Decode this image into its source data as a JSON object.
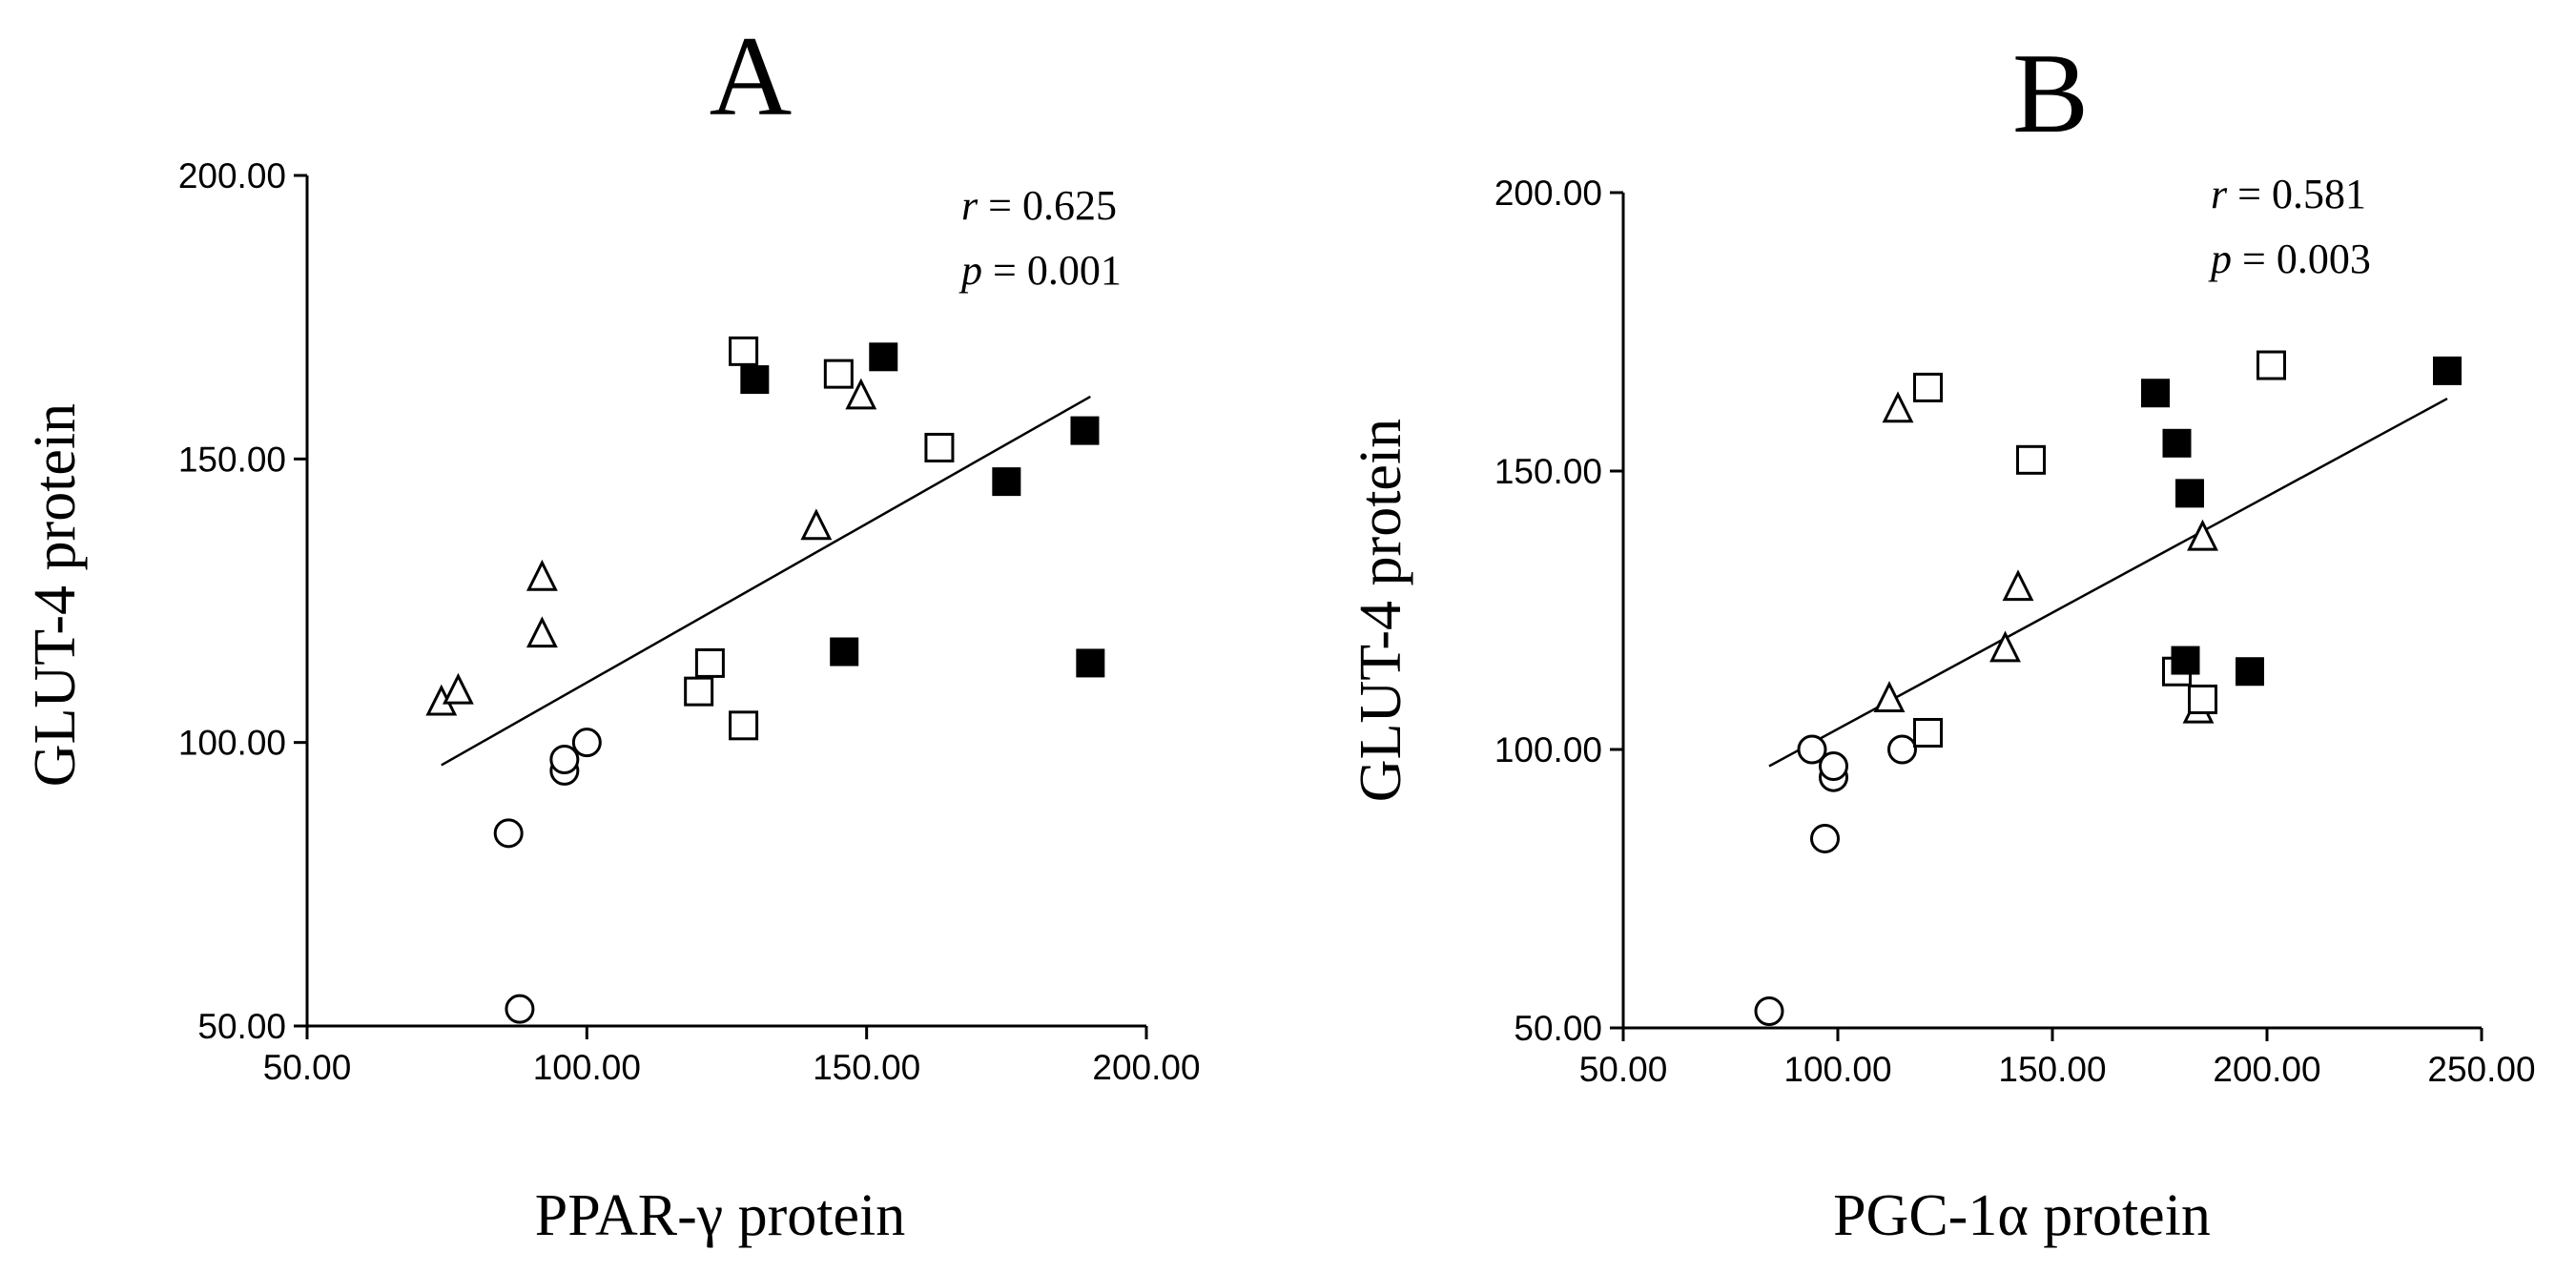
{
  "chart_data": [
    {
      "type": "scatter",
      "panel_label": "A",
      "title": "",
      "xlabel": "PPAR-γ protein",
      "ylabel": "GLUT-4 protein",
      "xlim": [
        50,
        200
      ],
      "ylim": [
        50,
        200
      ],
      "xticks": [
        "50.00",
        "100.00",
        "150.00",
        "200.00"
      ],
      "yticks": [
        "50.00",
        "100.00",
        "150.00",
        "200.00"
      ],
      "stats": {
        "r_symbol": "r",
        "r_text": " = 0.625",
        "p_symbol": "p",
        "p_text": " = 0.001"
      },
      "fit_line": {
        "x": [
          74,
          190
        ],
        "y": [
          96,
          161
        ]
      },
      "series": [
        {
          "name": "open circle",
          "marker": "circle-open",
          "points": [
            [
              86,
              84
            ],
            [
              88,
              53
            ],
            [
              96,
              95
            ],
            [
              96,
              97
            ],
            [
              100,
              100
            ]
          ]
        },
        {
          "name": "open triangle",
          "marker": "triangle-open",
          "points": [
            [
              74,
              107
            ],
            [
              77,
              109
            ],
            [
              92,
              119
            ],
            [
              92,
              129
            ],
            [
              141,
              138
            ],
            [
              149,
              161
            ]
          ]
        },
        {
          "name": "open square",
          "marker": "square-open",
          "points": [
            [
              120,
              109
            ],
            [
              122,
              114
            ],
            [
              128,
              103
            ],
            [
              128,
              169
            ],
            [
              145,
              165
            ],
            [
              163,
              152
            ]
          ]
        },
        {
          "name": "filled square",
          "marker": "square-filled",
          "points": [
            [
              130,
              164
            ],
            [
              146,
              116
            ],
            [
              153,
              168
            ],
            [
              175,
              146
            ],
            [
              189,
              155
            ],
            [
              190,
              114
            ]
          ]
        }
      ]
    },
    {
      "type": "scatter",
      "panel_label": "B",
      "title": "",
      "xlabel": "PGC-1α protein",
      "ylabel": "GLUT-4 protein",
      "xlim": [
        50,
        250
      ],
      "ylim": [
        50,
        200
      ],
      "xticks": [
        "50.00",
        "100.00",
        "150.00",
        "200.00",
        "250.00"
      ],
      "yticks": [
        "50.00",
        "100.00",
        "150.00",
        "200.00"
      ],
      "stats": {
        "r_symbol": "r",
        "r_text": " = 0.581",
        "p_symbol": "p",
        "p_text": " = 0.003"
      },
      "fit_line": {
        "x": [
          84,
          242
        ],
        "y": [
          97,
          163
        ]
      },
      "series": [
        {
          "name": "open circle",
          "marker": "circle-open",
          "points": [
            [
              84,
              53
            ],
            [
              94,
              100
            ],
            [
              97,
              84
            ],
            [
              99,
              95
            ],
            [
              99,
              97
            ],
            [
              115,
              100
            ]
          ]
        },
        {
          "name": "open triangle",
          "marker": "triangle-open",
          "points": [
            [
              112,
              109
            ],
            [
              114,
              161
            ],
            [
              139,
              118
            ],
            [
              142,
              129
            ],
            [
              184,
              107
            ],
            [
              185,
              138
            ]
          ]
        },
        {
          "name": "open square",
          "marker": "square-open",
          "points": [
            [
              121,
              165
            ],
            [
              121,
              103
            ],
            [
              145,
              152
            ],
            [
              179,
              114
            ],
            [
              185,
              109
            ],
            [
              201,
              169
            ]
          ]
        },
        {
          "name": "filled square",
          "marker": "square-filled",
          "points": [
            [
              174,
              164
            ],
            [
              179,
              155
            ],
            [
              181,
              116
            ],
            [
              182,
              146
            ],
            [
              196,
              114
            ],
            [
              242,
              168
            ]
          ]
        }
      ]
    }
  ]
}
